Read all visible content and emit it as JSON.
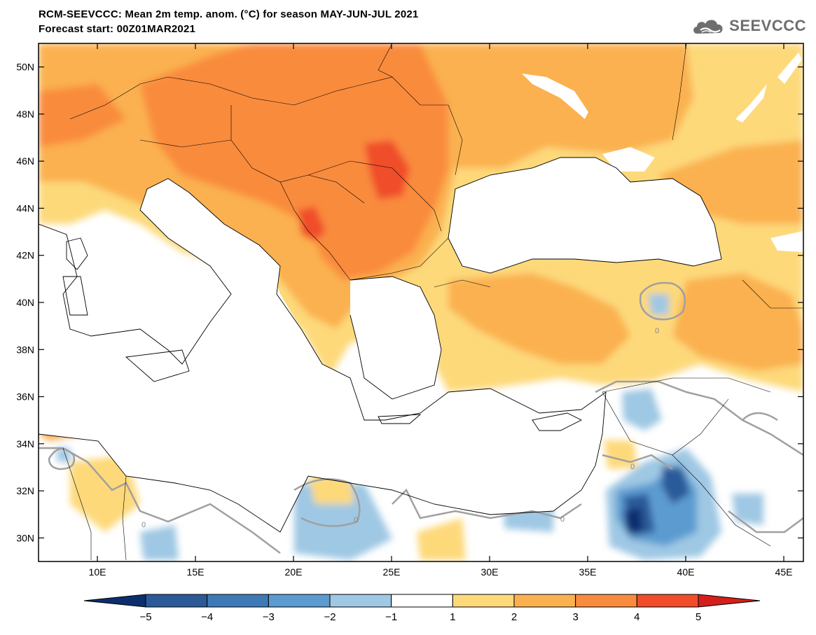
{
  "header": {
    "title_line1": "RCM-SEEVCCC: Mean 2m temp. anom. (°C) for season MAY-JUN-JUL 2021",
    "title_line2": "Forecast start: 00Z01MAR2021"
  },
  "logo": {
    "text": "SEEVCCC",
    "icon": "cloud-icon"
  },
  "map": {
    "lon_range": [
      7,
      46
    ],
    "lat_range": [
      29,
      51
    ],
    "lon_ticks": [
      {
        "v": 10,
        "t": "10E"
      },
      {
        "v": 15,
        "t": "15E"
      },
      {
        "v": 20,
        "t": "20E"
      },
      {
        "v": 25,
        "t": "25E"
      },
      {
        "v": 30,
        "t": "30E"
      },
      {
        "v": 35,
        "t": "35E"
      },
      {
        "v": 40,
        "t": "40E"
      },
      {
        "v": 45,
        "t": "45E"
      }
    ],
    "lat_ticks": [
      {
        "v": 30,
        "t": "30N"
      },
      {
        "v": 32,
        "t": "32N"
      },
      {
        "v": 34,
        "t": "34N"
      },
      {
        "v": 36,
        "t": "36N"
      },
      {
        "v": 38,
        "t": "38N"
      },
      {
        "v": 40,
        "t": "40N"
      },
      {
        "v": 42,
        "t": "42N"
      },
      {
        "v": 44,
        "t": "44N"
      },
      {
        "v": 46,
        "t": "46N"
      },
      {
        "v": 48,
        "t": "48N"
      },
      {
        "v": 50,
        "t": "50N"
      }
    ],
    "zero_contour_label": "0"
  },
  "colorbar": {
    "boundaries": [
      "-5",
      "-4",
      "-3",
      "-2",
      "-1",
      "1",
      "2",
      "3",
      "4",
      "5"
    ],
    "colors": [
      "#2c5a99",
      "#3f7ab8",
      "#5b9bd0",
      "#9fc8e4",
      "#ffffff",
      "#fdd97a",
      "#fbb150",
      "#f98b3e",
      "#f04d2a"
    ],
    "extend_low_color": "#0c2e6e",
    "extend_high_color": "#d41f1a"
  }
}
